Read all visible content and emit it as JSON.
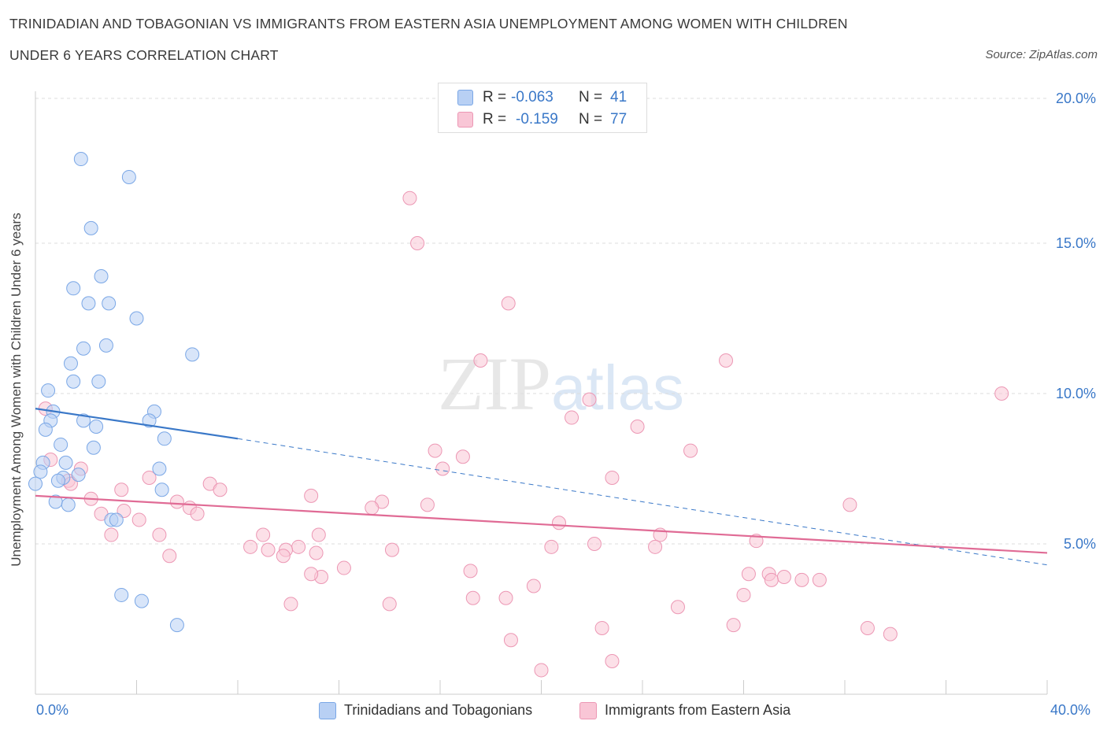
{
  "header": {
    "title_line1": "TRINIDADIAN AND TOBAGONIAN VS IMMIGRANTS FROM EASTERN ASIA UNEMPLOYMENT AMONG WOMEN WITH CHILDREN",
    "title_line2": "UNDER 6 YEARS CORRELATION CHART",
    "source": "Source: ZipAtlas.com"
  },
  "legend": {
    "rows": [
      {
        "r_label": "R =",
        "r_value": "-0.063",
        "n_label": "N =",
        "n_value": "41",
        "color": "#7aa7e6"
      },
      {
        "r_label": "R =",
        "r_value": "-0.159",
        "n_label": "N =",
        "n_value": "77",
        "color": "#ec97b4"
      }
    ]
  },
  "bottom_legend": {
    "series1": "Trinidadians and Tobagonians",
    "series2": "Immigrants from Eastern Asia"
  },
  "watermark": {
    "zip": "ZIP",
    "atlas": "atlas"
  },
  "colors": {
    "blue_fill": "#b8d0f4",
    "blue_stroke": "#7aa7e6",
    "blue_line": "#3a78c8",
    "pink_fill": "#f9c6d6",
    "pink_stroke": "#ec97b4",
    "pink_line": "#e06b95",
    "grid": "#dddddd",
    "axis_text": "#3a78c8"
  },
  "chart_data": {
    "type": "scatter",
    "ylabel": "Unemployment Among Women with Children Under 6 years",
    "xlim": [
      0,
      40
    ],
    "ylim": [
      0,
      20
    ],
    "x_tick_labels": [
      "0.0%",
      "40.0%"
    ],
    "y_ticks": [
      5,
      10,
      15,
      20
    ],
    "y_tick_labels": [
      "5.0%",
      "10.0%",
      "15.0%",
      "20.0%"
    ],
    "grid": "horizontal dashed",
    "series": [
      {
        "name": "Trinidadians and Tobagonians",
        "trend": {
          "x": [
            0,
            8
          ],
          "y": [
            9.5,
            8.5
          ],
          "dashed_extension_to": [
            40,
            4.3
          ]
        },
        "points": [
          [
            1.8,
            17.8
          ],
          [
            3.7,
            17.2
          ],
          [
            2.2,
            15.5
          ],
          [
            1.5,
            13.5
          ],
          [
            2.6,
            13.9
          ],
          [
            2.1,
            13.0
          ],
          [
            2.9,
            13.0
          ],
          [
            4.0,
            12.5
          ],
          [
            1.9,
            11.5
          ],
          [
            2.8,
            11.6
          ],
          [
            6.2,
            11.3
          ],
          [
            1.4,
            11.0
          ],
          [
            1.5,
            10.4
          ],
          [
            2.5,
            10.4
          ],
          [
            0.5,
            10.1
          ],
          [
            0.7,
            9.4
          ],
          [
            4.7,
            9.4
          ],
          [
            0.6,
            9.1
          ],
          [
            1.9,
            9.1
          ],
          [
            4.5,
            9.1
          ],
          [
            0.4,
            8.8
          ],
          [
            2.4,
            8.9
          ],
          [
            5.1,
            8.5
          ],
          [
            1.0,
            8.3
          ],
          [
            2.3,
            8.2
          ],
          [
            1.2,
            7.7
          ],
          [
            0.3,
            7.7
          ],
          [
            4.9,
            7.5
          ],
          [
            0.2,
            7.4
          ],
          [
            1.7,
            7.3
          ],
          [
            1.1,
            7.2
          ],
          [
            0.9,
            7.1
          ],
          [
            5.0,
            6.8
          ],
          [
            0.0,
            7.0
          ],
          [
            0.8,
            6.4
          ],
          [
            1.3,
            6.3
          ],
          [
            3.0,
            5.8
          ],
          [
            3.2,
            5.8
          ],
          [
            3.4,
            3.3
          ],
          [
            4.2,
            3.1
          ],
          [
            5.6,
            2.3
          ]
        ]
      },
      {
        "name": "Immigrants from Eastern Asia",
        "trend": {
          "x": [
            0,
            40
          ],
          "y": [
            6.6,
            4.7
          ]
        },
        "points": [
          [
            14.8,
            16.5
          ],
          [
            15.1,
            15.0
          ],
          [
            18.7,
            13.0
          ],
          [
            17.6,
            11.1
          ],
          [
            27.3,
            11.1
          ],
          [
            38.2,
            10.0
          ],
          [
            21.9,
            9.8
          ],
          [
            0.4,
            9.5
          ],
          [
            21.2,
            9.2
          ],
          [
            23.8,
            8.9
          ],
          [
            15.8,
            8.1
          ],
          [
            16.9,
            7.9
          ],
          [
            25.9,
            8.1
          ],
          [
            0.6,
            7.8
          ],
          [
            1.8,
            7.5
          ],
          [
            16.1,
            7.5
          ],
          [
            4.5,
            7.2
          ],
          [
            22.8,
            7.2
          ],
          [
            1.3,
            7.1
          ],
          [
            1.4,
            7.0
          ],
          [
            6.9,
            7.0
          ],
          [
            3.4,
            6.8
          ],
          [
            7.3,
            6.8
          ],
          [
            10.9,
            6.6
          ],
          [
            2.2,
            6.5
          ],
          [
            5.6,
            6.4
          ],
          [
            13.7,
            6.4
          ],
          [
            15.5,
            6.3
          ],
          [
            13.3,
            6.2
          ],
          [
            6.1,
            6.2
          ],
          [
            3.5,
            6.1
          ],
          [
            2.6,
            6.0
          ],
          [
            6.4,
            6.0
          ],
          [
            4.1,
            5.8
          ],
          [
            20.7,
            5.7
          ],
          [
            3.0,
            5.3
          ],
          [
            9.0,
            5.3
          ],
          [
            11.2,
            5.3
          ],
          [
            4.9,
            5.3
          ],
          [
            24.7,
            5.3
          ],
          [
            28.5,
            5.1
          ],
          [
            8.5,
            4.9
          ],
          [
            10.4,
            4.9
          ],
          [
            20.4,
            4.9
          ],
          [
            22.1,
            5.0
          ],
          [
            9.9,
            4.8
          ],
          [
            9.2,
            4.8
          ],
          [
            11.1,
            4.7
          ],
          [
            14.1,
            4.8
          ],
          [
            24.5,
            4.9
          ],
          [
            32.2,
            6.3
          ],
          [
            5.3,
            4.6
          ],
          [
            9.8,
            4.6
          ],
          [
            12.2,
            4.2
          ],
          [
            11.3,
            3.9
          ],
          [
            10.9,
            4.0
          ],
          [
            17.2,
            4.1
          ],
          [
            28.2,
            4.0
          ],
          [
            29.0,
            4.0
          ],
          [
            29.6,
            3.9
          ],
          [
            30.3,
            3.8
          ],
          [
            29.1,
            3.8
          ],
          [
            31.0,
            3.8
          ],
          [
            19.7,
            3.6
          ],
          [
            17.3,
            3.2
          ],
          [
            18.6,
            3.2
          ],
          [
            28.0,
            3.3
          ],
          [
            10.1,
            3.0
          ],
          [
            14.0,
            3.0
          ],
          [
            25.4,
            2.9
          ],
          [
            27.6,
            2.3
          ],
          [
            22.4,
            2.2
          ],
          [
            32.9,
            2.2
          ],
          [
            33.8,
            2.0
          ],
          [
            18.8,
            1.8
          ],
          [
            22.8,
            1.1
          ],
          [
            20.0,
            0.8
          ]
        ]
      }
    ]
  }
}
